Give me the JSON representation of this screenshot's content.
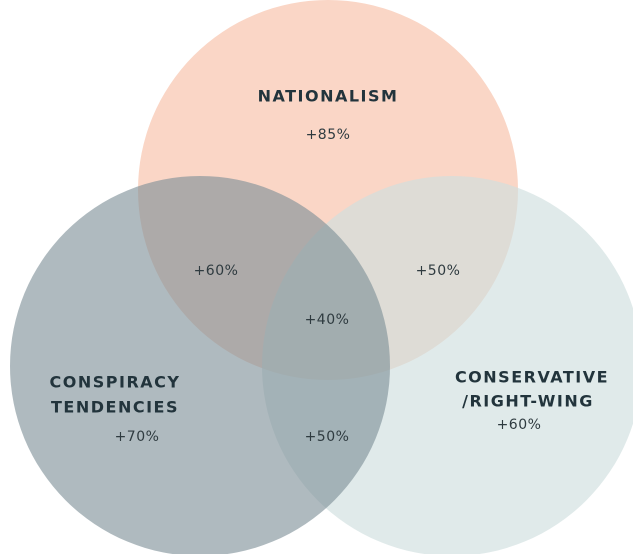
{
  "sets": [
    {
      "label": [
        "NATIONALISM"
      ],
      "value": "+85%"
    },
    {
      "label": [
        "CONSPIRACY",
        "TENDENCIES"
      ],
      "value": "+70%"
    },
    {
      "label": [
        "CONSERVATIVE",
        "/RIGHT-WING"
      ],
      "value": "+60%"
    }
  ],
  "intersections": [
    {
      "value": "+60%"
    },
    {
      "value": "+50%"
    },
    {
      "value": "+40%"
    },
    {
      "value": "+50%"
    }
  ]
}
